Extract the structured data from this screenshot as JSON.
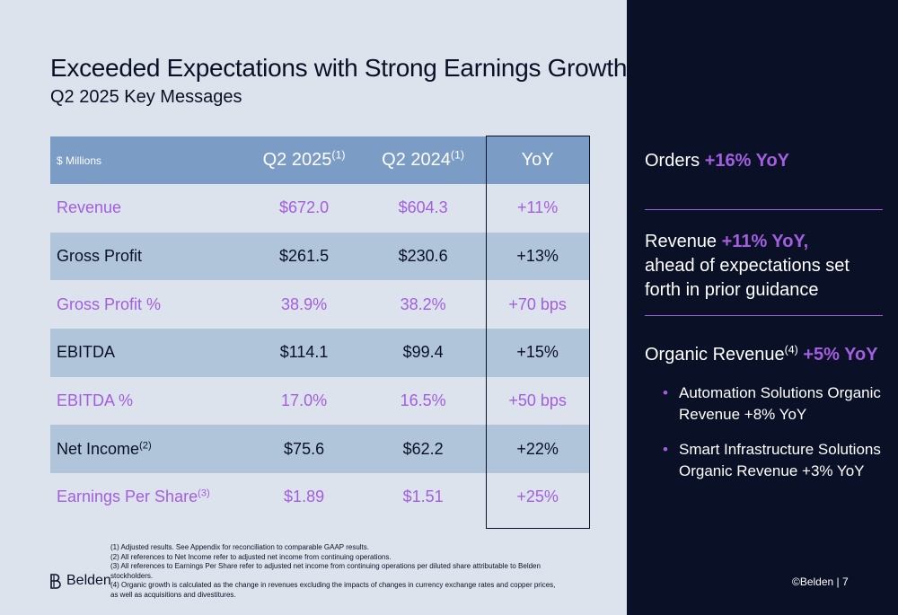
{
  "title": "Exceeded Expectations with Strong Earnings Growth",
  "subtitle": "Q2 2025 Key Messages",
  "table": {
    "headers": {
      "col0": "$ Millions",
      "col1": "Q2 2025",
      "col1_sup": "(1)",
      "col2": "Q2 2024",
      "col2_sup": "(1)",
      "col3": "YoY"
    },
    "rows": [
      {
        "label": "Revenue",
        "sup": "",
        "q2_2025": "$672.0",
        "q2_2024": "$604.3",
        "yoy": "+11%"
      },
      {
        "label": "Gross Profit",
        "sup": "",
        "q2_2025": "$261.5",
        "q2_2024": "$230.6",
        "yoy": "+13%"
      },
      {
        "label": "Gross Profit %",
        "sup": "",
        "q2_2025": "38.9%",
        "q2_2024": "38.2%",
        "yoy": "+70 bps"
      },
      {
        "label": "EBITDA",
        "sup": "",
        "q2_2025": "$114.1",
        "q2_2024": "$99.4",
        "yoy": "+15%"
      },
      {
        "label": "EBITDA %",
        "sup": "",
        "q2_2025": "17.0%",
        "q2_2024": "16.5%",
        "yoy": "+50 bps"
      },
      {
        "label": "Net Income",
        "sup": "(2)",
        "q2_2025": "$75.6",
        "q2_2024": "$62.2",
        "yoy": "+22%"
      },
      {
        "label": "Earnings Per Share",
        "sup": "(3)",
        "q2_2025": "$1.89",
        "q2_2024": "$1.51",
        "yoy": "+25%"
      }
    ]
  },
  "footnotes": [
    "(1) Adjusted results.  See Appendix for reconciliation to comparable GAAP results.",
    "(2) All references to Net Income refer to adjusted net income from continuing operations.",
    "(3) All references to Earnings Per Share refer to adjusted net income from continuing operations per diluted share attributable to Belden stockholders.",
    "(4) Organic growth is calculated as the change in revenues excluding the impacts of changes in currency exchange rates and copper prices, as well as acquisitions and divestitures."
  ],
  "logo": {
    "text": "Belden",
    "icon": "belden-logo-icon"
  },
  "sidebar": {
    "orders": {
      "label": "Orders ",
      "highlight": "+16% YoY"
    },
    "revenue": {
      "label": "Revenue ",
      "highlight": "+11% YoY,",
      "detail": "ahead of expectations set forth in prior guidance"
    },
    "organic": {
      "label": "Organic Revenue",
      "sup": "(4)",
      "highlight": " +5% YoY"
    },
    "bullets": [
      "Automation Solutions Organic Revenue +8% YoY",
      "Smart Infrastructure Solutions Organic Revenue +3% YoY"
    ],
    "copyright": "©Belden  |  7"
  },
  "colors": {
    "navy": "#0a1127",
    "purple": "#a35ee0",
    "header_blue": "#7a9cc5",
    "band_blue": "#b0c4da",
    "background": "#dde3ec"
  }
}
